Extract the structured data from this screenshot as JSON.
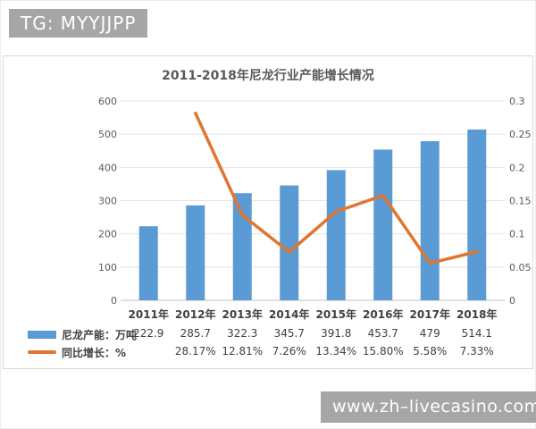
{
  "page": {
    "top_badge": "TG: MYYJJPP",
    "bottom_badge": "www.zh–livecasino.com"
  },
  "chart_data": {
    "type": "bar+line",
    "title": "2011-2018年尼龙行业产能增长情况",
    "categories": [
      "2011年",
      "2012年",
      "2013年",
      "2014年",
      "2015年",
      "2016年",
      "2017年",
      "2018年"
    ],
    "series": [
      {
        "name": "尼龙产能：万吨",
        "type": "bar",
        "color": "#5b9bd5",
        "values": [
          222.9,
          285.7,
          322.3,
          345.7,
          391.8,
          453.7,
          479,
          514.1
        ],
        "labels": [
          "222.9",
          "285.7",
          "322.3",
          "345.7",
          "391.8",
          "453.7",
          "479",
          "514.1"
        ]
      },
      {
        "name": "同比增长：%",
        "type": "line",
        "color": "#e0762f",
        "values": [
          null,
          0.2817,
          0.1281,
          0.0726,
          0.1334,
          0.158,
          0.0558,
          0.0733
        ],
        "labels": [
          "",
          "28.17%",
          "12.81%",
          "7.26%",
          "13.34%",
          "15.80%",
          "5.58%",
          "7.33%"
        ]
      }
    ],
    "left_axis": {
      "min": 0,
      "max": 600,
      "step": 100,
      "ticks": [
        "0",
        "100",
        "200",
        "300",
        "400",
        "500",
        "600"
      ]
    },
    "right_axis": {
      "min": 0,
      "max": 0.3,
      "step": 0.05,
      "ticks": [
        "0",
        "0.05",
        "0.1",
        "0.15",
        "0.2",
        "0.25",
        "0.3"
      ]
    },
    "grid": true,
    "legend_position": "bottom-left"
  }
}
